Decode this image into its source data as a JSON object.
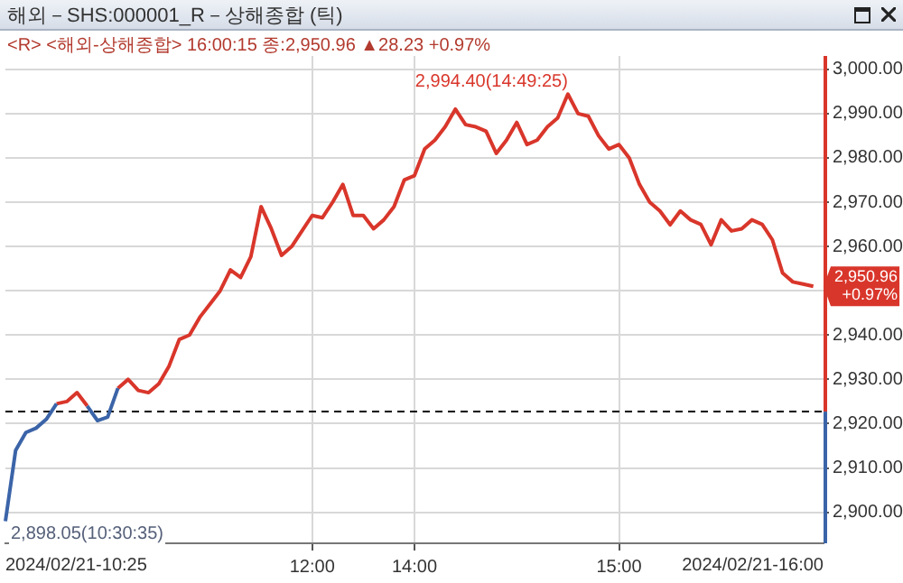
{
  "chart_data": {
    "type": "line",
    "title": "해외－SHS:000001_R－상해종합 (틱)",
    "subtitle": "<R> <해외-상해종합> 16:00:15 종:2,950.96 ▲28.23 +0.97%",
    "categories": [
      null,
      null,
      null,
      null,
      null,
      null,
      null,
      null,
      null,
      null,
      null,
      null,
      null,
      null,
      null,
      null,
      null,
      null,
      null,
      null,
      null,
      null,
      null,
      null,
      null,
      null,
      null,
      null,
      null,
      null,
      "12:00",
      null,
      null,
      null,
      null,
      null,
      null,
      null,
      null,
      null,
      "14:00",
      null,
      null,
      null,
      null,
      null,
      null,
      null,
      null,
      null,
      null,
      null,
      null,
      null,
      null,
      null,
      null,
      null,
      null,
      null,
      "15:00",
      null,
      null,
      null,
      null,
      null,
      null,
      null,
      null,
      null,
      null,
      null,
      null,
      null,
      null,
      null,
      null,
      null,
      null,
      null,
      null
    ],
    "series": [
      {
        "color": "#3b64a8",
        "values": [
          2898,
          2914,
          2918,
          2919,
          2921,
          2924.5,
          null,
          null,
          2924,
          2920.7,
          2921.5,
          2928,
          null,
          null,
          null,
          null,
          null,
          null,
          null,
          null,
          null,
          null,
          null,
          null,
          null,
          null,
          null,
          null,
          null,
          null,
          null,
          null,
          null,
          null,
          null,
          null,
          null,
          null,
          null,
          null,
          null,
          null,
          null,
          null,
          null,
          null,
          null,
          null,
          null,
          null,
          null,
          null,
          null,
          null,
          null,
          null,
          null,
          null,
          null,
          null,
          null,
          null,
          null,
          null,
          null,
          null,
          null,
          null,
          null,
          null,
          null,
          null,
          null,
          null,
          null,
          null,
          null,
          null,
          null,
          null,
          null
        ]
      },
      {
        "color": "#d9362b",
        "values": [
          null,
          null,
          null,
          null,
          null,
          2924.5,
          2925,
          2927,
          2924,
          null,
          null,
          2928,
          2930,
          2927.5,
          2927,
          2929,
          2933,
          2939,
          2940,
          2944,
          2947,
          2950,
          2954.7,
          2953,
          2957.7,
          2969,
          2964,
          2958,
          2960,
          2963.5,
          2967,
          2966.5,
          2970,
          2974,
          2967,
          2967,
          2964,
          2966,
          2969,
          2975,
          2976,
          2982,
          2984,
          2987,
          2991,
          2987.5,
          2987,
          2986,
          2981,
          2984,
          2988,
          2983,
          2984,
          2987,
          2989,
          2994.4,
          2990,
          2989.4,
          2985,
          2982,
          2983,
          2980,
          2974,
          2970,
          2968,
          2964.9,
          2968,
          2966,
          2965,
          2960.4,
          2966,
          2963.5,
          2964,
          2966,
          2965,
          2961.5,
          2954,
          2952,
          2951.5,
          2951,
          null
        ]
      }
    ],
    "ylim": [
      2893,
      3003
    ],
    "yticks": [
      {
        "value": 2900,
        "label": "2,900.00"
      },
      {
        "value": 2910,
        "label": "2,910.00"
      },
      {
        "value": 2920,
        "label": "2,920.00"
      },
      {
        "value": 2930,
        "label": "2,930.00"
      },
      {
        "value": 2940,
        "label": "2,940.00"
      },
      {
        "value": 2950,
        "label": null
      },
      {
        "value": 2960,
        "label": "2,960.00"
      },
      {
        "value": 2970,
        "label": "2,970.00"
      },
      {
        "value": 2980,
        "label": "2,980.00"
      },
      {
        "value": 2990,
        "label": "2,990.00"
      },
      {
        "value": 3000,
        "label": "3,000.00"
      }
    ],
    "ref_lines": [
      {
        "axis": "y",
        "value": 2922.73,
        "color": "#000000",
        "line_style": "dashed"
      }
    ],
    "annotations": [
      "2,994.40(14:49:25)",
      "2,898.05(10:30:35)",
      "2,950.96 +0.97%",
      "2024/02/21-10:25",
      "2024/02/21-16:00"
    ],
    "grid": true,
    "marker": "none",
    "line_style": "solid"
  }
}
